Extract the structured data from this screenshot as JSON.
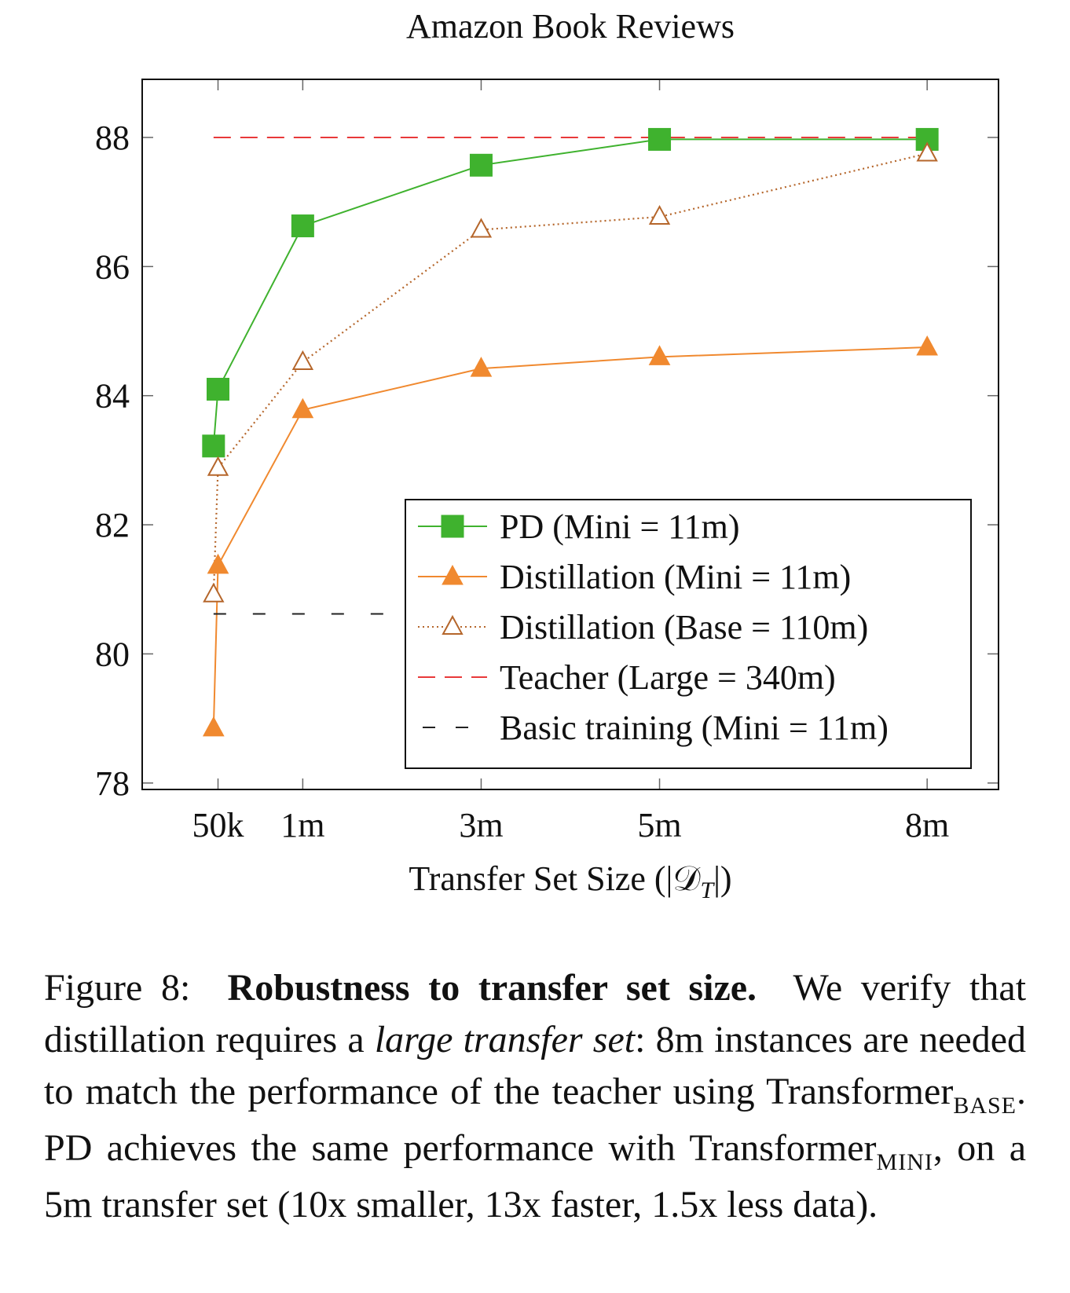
{
  "chart_data": {
    "type": "line",
    "title": "Amazon Book Reviews",
    "xlabel": "Transfer Set Size (|𝒟",
    "xlabel_sub": "T",
    "xlabel_end": "|)",
    "ylabel": "",
    "x_tick_labels": [
      "50k",
      "1m",
      "3m",
      "5m",
      "8m"
    ],
    "x_tick_values": [
      0.05,
      1,
      3,
      5,
      8
    ],
    "xlim": [
      -0.8,
      8.8
    ],
    "y_ticks": [
      78,
      80,
      82,
      84,
      86,
      88
    ],
    "ylim": [
      77.9,
      88.9
    ],
    "legend_position": "bottom-right",
    "series": [
      {
        "name": "PD (Mini = 11m)",
        "color": "#3fb22e",
        "line": "solid",
        "marker": "square-filled",
        "points": [
          [
            0.0,
            83.22
          ],
          [
            0.05,
            84.1
          ],
          [
            1,
            86.63
          ],
          [
            3,
            87.57
          ],
          [
            5,
            87.97
          ],
          [
            8,
            87.97
          ]
        ]
      },
      {
        "name": "Distillation (Mini = 11m)",
        "color": "#f0892f",
        "line": "solid",
        "marker": "triangle-filled",
        "points": [
          [
            0.0,
            78.85
          ],
          [
            0.05,
            81.37
          ],
          [
            1,
            83.78
          ],
          [
            3,
            84.42
          ],
          [
            5,
            84.6
          ],
          [
            8,
            84.75
          ]
        ]
      },
      {
        "name": "Distillation (Base = 110m)",
        "color": "#b5662b",
        "line": "dotted",
        "marker": "triangle-open",
        "points": [
          [
            0.0,
            80.92
          ],
          [
            0.05,
            82.88
          ],
          [
            1,
            84.52
          ],
          [
            3,
            86.57
          ],
          [
            5,
            86.77
          ],
          [
            8,
            87.75
          ]
        ]
      },
      {
        "name": "Teacher (Large = 340m)",
        "color": "#e8393a",
        "line": "dashed",
        "marker": "none",
        "points": [
          [
            0.0,
            88.0
          ],
          [
            8,
            88.0
          ]
        ]
      },
      {
        "name": "Basic training (Mini = 11m)",
        "color": "#222222",
        "line": "loosely-dashed",
        "marker": "none",
        "points": [
          [
            0.0,
            80.62
          ],
          [
            8,
            80.62
          ]
        ]
      }
    ]
  },
  "caption": {
    "label": "Figure 8:",
    "bold": "Robustness to transfer set size.",
    "t1": "We verify that distillation requires a",
    "italic": "large transfer set",
    "t2": ": 8m instances are needed to match the performance of the teacher using Transformer",
    "sub1": "BASE",
    "t3": ". PD achieves the same performance with Transformer",
    "sub2": "MINI",
    "t4": ", on a 5m transfer set (10x smaller, 13x faster, 1.5x less data)."
  }
}
